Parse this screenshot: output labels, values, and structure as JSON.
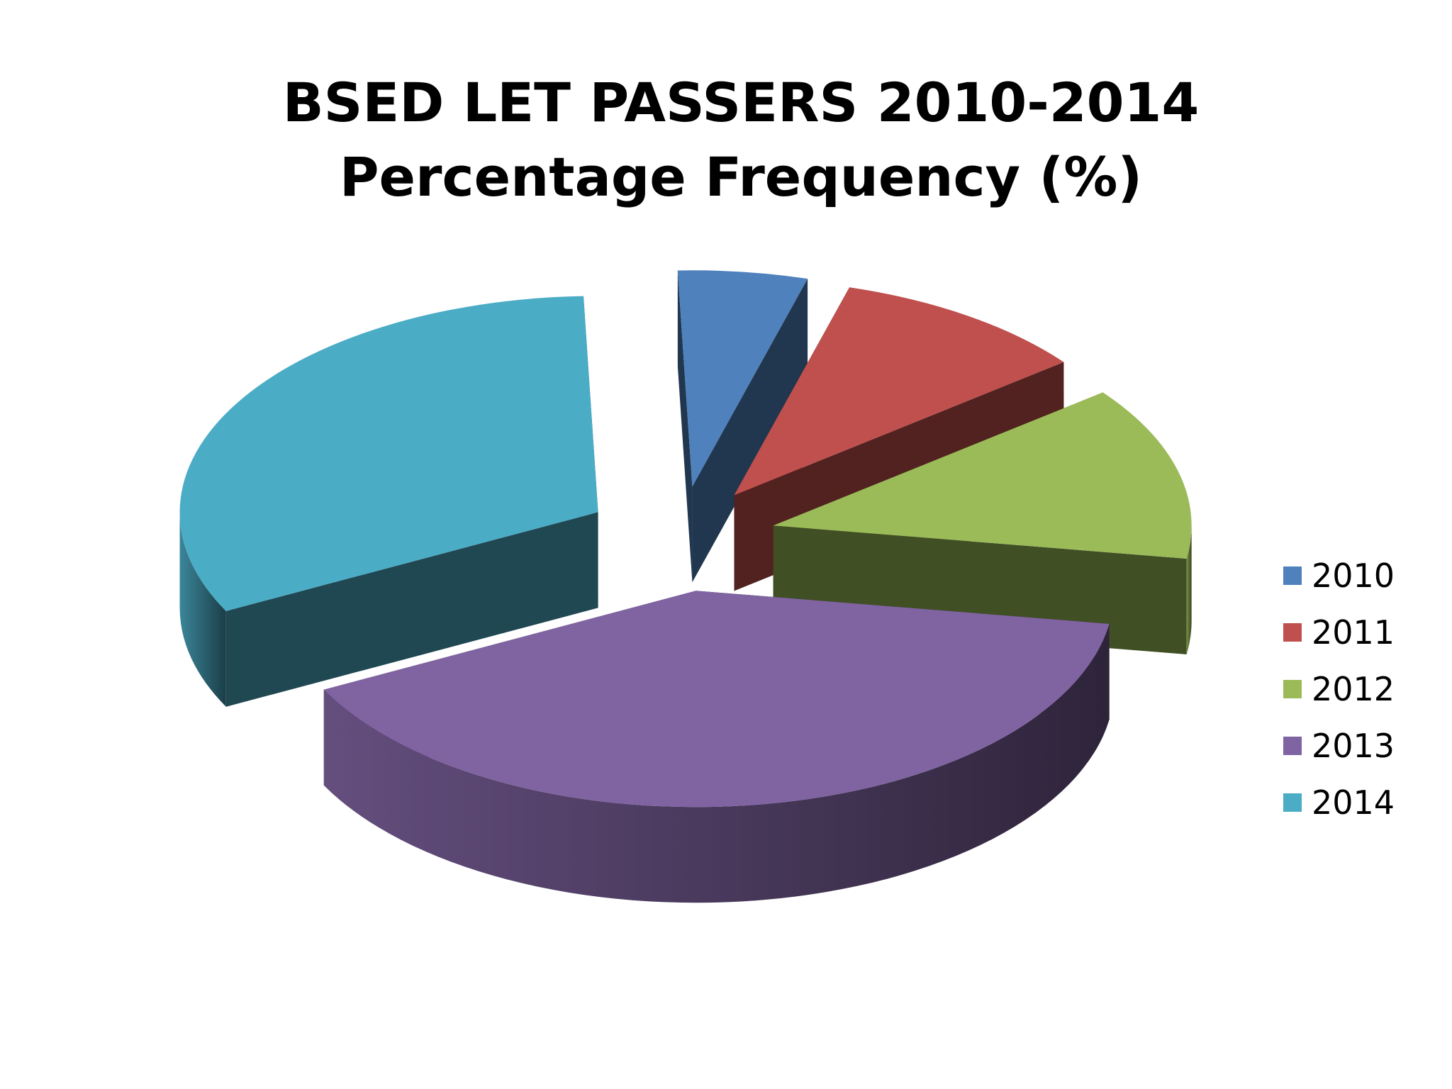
{
  "chart_data": {
    "type": "pie",
    "title": "BSED LET PASSERS 2010-2014",
    "subtitle": "Percentage Frequency (%)",
    "exploded": true,
    "three_d": true,
    "legend_position": "right",
    "categories": [
      "2010",
      "2011",
      "2012",
      "2013",
      "2014"
    ],
    "values": [
      5,
      10,
      13,
      40,
      32
    ],
    "colors": [
      "#4F81BD",
      "#C0504D",
      "#9BBB59",
      "#8064A2",
      "#4BACC6"
    ]
  }
}
